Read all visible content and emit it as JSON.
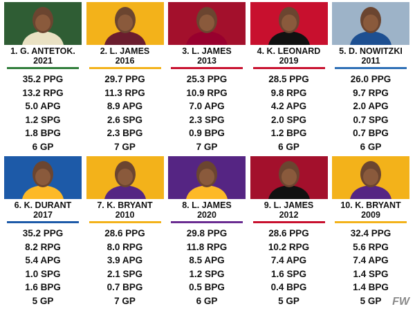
{
  "cards": [
    {
      "name": "1. G. ANTETOK.",
      "year": "2021",
      "stats": [
        "35.2 PPG",
        "13.2 RPG",
        "5.0 APG",
        "1.2 SPG",
        "1.8 BPG",
        "6 GP"
      ]
    },
    {
      "name": "2. L. JAMES",
      "year": "2016",
      "stats": [
        "29.7 PPG",
        "11.3 RPG",
        "8.9 APG",
        "2.6 SPG",
        "2.3 BPG",
        "7 GP"
      ]
    },
    {
      "name": "3. L. JAMES",
      "year": "2013",
      "stats": [
        "25.3 PPG",
        "10.9 RPG",
        "7.0 APG",
        "2.3 SPG",
        "0.9 BPG",
        "7 GP"
      ]
    },
    {
      "name": "4. K. LEONARD",
      "year": "2019",
      "stats": [
        "28.5 PPG",
        "9.8 RPG",
        "4.2 APG",
        "2.0 SPG",
        "1.2 BPG",
        "6 GP"
      ]
    },
    {
      "name": "5. D. NOWITZKI",
      "year": "2011",
      "stats": [
        "26.0 PPG",
        "9.7 RPG",
        "2.0 APG",
        "0.7 SPG",
        "0.7 BPG",
        "6 GP"
      ]
    },
    {
      "name": "6. K. DURANT",
      "year": "2017",
      "stats": [
        "35.2 PPG",
        "8.2 RPG",
        "5.4 APG",
        "1.0 SPG",
        "1.6 BPG",
        "5 GP"
      ]
    },
    {
      "name": "7. K. BRYANT",
      "year": "2010",
      "stats": [
        "28.6 PPG",
        "8.0 RPG",
        "3.9 APG",
        "2.1 SPG",
        "0.7 BPG",
        "7 GP"
      ]
    },
    {
      "name": "8. L. JAMES",
      "year": "2020",
      "stats": [
        "29.8 PPG",
        "11.8 RPG",
        "8.5 APG",
        "1.2 SPG",
        "0.5 BPG",
        "6 GP"
      ]
    },
    {
      "name": "9. L. JAMES",
      "year": "2012",
      "stats": [
        "28.6 PPG",
        "10.2 RPG",
        "7.4 APG",
        "1.6 SPG",
        "0.4 BPG",
        "5 GP"
      ]
    },
    {
      "name": "10. K. BRYANT",
      "year": "2009",
      "stats": [
        "32.4 PPG",
        "5.6 RPG",
        "7.4 APG",
        "1.4 SPG",
        "1.4 BPG",
        "5 GP"
      ]
    }
  ],
  "watermark": "FW"
}
